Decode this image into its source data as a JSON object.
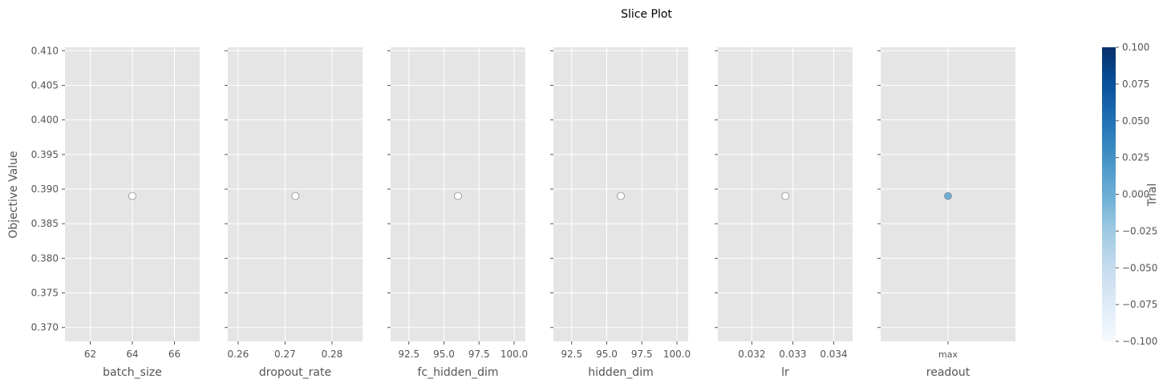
{
  "chart_data": {
    "type": "scatter",
    "title": "Slice Plot",
    "ylabel": "Objective Value",
    "ylim": [
      0.368,
      0.4105
    ],
    "y_ticks": [
      "0.370",
      "0.375",
      "0.380",
      "0.385",
      "0.390",
      "0.395",
      "0.400",
      "0.405",
      "0.410"
    ],
    "y_tick_values": [
      0.37,
      0.375,
      0.38,
      0.385,
      0.39,
      0.395,
      0.4,
      0.405,
      0.41
    ],
    "grid": true,
    "panels": [
      {
        "xlabel": "batch_size",
        "xlim": [
          60.8,
          67.2
        ],
        "x_ticks": [
          "62",
          "64",
          "66"
        ],
        "x_tick_values": [
          62,
          64,
          66
        ],
        "points": [
          {
            "x": 64,
            "y": 0.389
          }
        ]
      },
      {
        "xlabel": "dropout_rate",
        "xlim": [
          0.2578,
          0.2865
        ],
        "x_ticks": [
          "0.26",
          "0.27",
          "0.28"
        ],
        "x_tick_values": [
          0.26,
          0.27,
          0.28
        ],
        "points": [
          {
            "x": 0.2722,
            "y": 0.389
          }
        ]
      },
      {
        "xlabel": "fc_hidden_dim",
        "xlim": [
          91.2,
          100.8
        ],
        "x_ticks": [
          "92.5",
          "95.0",
          "97.5",
          "100.0"
        ],
        "x_tick_values": [
          92.5,
          95.0,
          97.5,
          100.0
        ],
        "points": [
          {
            "x": 96,
            "y": 0.389
          }
        ]
      },
      {
        "xlabel": "hidden_dim",
        "xlim": [
          91.2,
          100.8
        ],
        "x_ticks": [
          "92.5",
          "95.0",
          "97.5",
          "100.0"
        ],
        "x_tick_values": [
          92.5,
          95.0,
          97.5,
          100.0
        ],
        "points": [
          {
            "x": 96,
            "y": 0.389
          }
        ]
      },
      {
        "xlabel": "lr",
        "xlim": [
          0.03117,
          0.03446
        ],
        "x_ticks": [
          "0.032",
          "0.033",
          "0.034"
        ],
        "x_tick_values": [
          0.032,
          0.033,
          0.034
        ],
        "points": [
          {
            "x": 0.03282,
            "y": 0.389
          }
        ]
      },
      {
        "xlabel": "readout",
        "categorical": true,
        "x_ticks": [
          "max"
        ],
        "points": [
          {
            "x": "max",
            "y": 0.389
          }
        ]
      }
    ],
    "colorbar": {
      "label": "Trial",
      "range": [
        -0.1,
        0.1
      ],
      "ticks": [
        "0.100",
        "0.075",
        "0.050",
        "0.025",
        "0.000",
        "−0.025",
        "−0.050",
        "−0.075",
        "−0.100"
      ],
      "tick_values": [
        0.1,
        0.075,
        0.05,
        0.025,
        0.0,
        -0.025,
        -0.05,
        -0.075,
        -0.1
      ],
      "colormap": "Blues",
      "color_high": "#08306b",
      "color_mid": "#6aaed6",
      "color_low": "#f7fbff"
    },
    "colors": {
      "panel_background": "#e5e5e5",
      "grid": "#ffffff",
      "tick_label": "#555555",
      "label": "#555555",
      "point_hollow": "#ffffff",
      "point_edge": "#8c8c8c",
      "point_readout": "#6aaed6"
    }
  }
}
